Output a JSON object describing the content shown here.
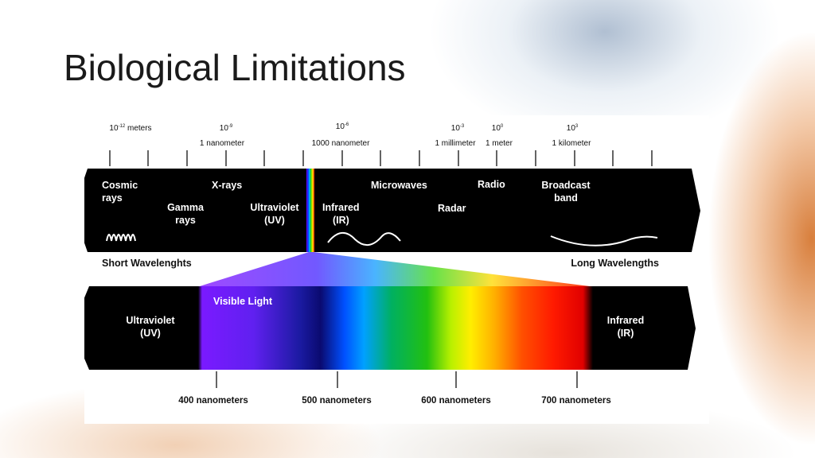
{
  "slide": {
    "title": "Biological Limitations"
  },
  "diagram": {
    "scale": [
      {
        "exponent_base": "10",
        "exponent": "-12",
        "unit": " meters",
        "sub": ""
      },
      {
        "exponent_base": "10",
        "exponent": "-9",
        "unit": "",
        "sub": "1 nanometer"
      },
      {
        "exponent_base": "10",
        "exponent": "-6",
        "unit": "",
        "sub": "1000 nanometer"
      },
      {
        "exponent_base": "10",
        "exponent": "-3",
        "unit": "",
        "sub": "1 millimeter"
      },
      {
        "exponent_base": "10",
        "exponent": "0",
        "unit": "",
        "sub": "1 meter"
      },
      {
        "exponent_base": "10",
        "exponent": "3",
        "unit": "",
        "sub": "1 kilometer"
      }
    ],
    "em_bands": {
      "cosmic": [
        "Cosmic",
        "rays"
      ],
      "xrays": "X-rays",
      "gamma": [
        "Gamma",
        "rays"
      ],
      "ultraviolet": [
        "Ultraviolet",
        "(UV)"
      ],
      "infrared": [
        "Infrared",
        "(IR)"
      ],
      "microwaves": "Microwaves",
      "radio": "Radio",
      "radar": "Radar",
      "broadcast": [
        "Broadcast",
        "band"
      ]
    },
    "short_label": "Short Wavelenghts",
    "long_label": "Long Wavelengths",
    "visible": {
      "uv": [
        "Ultraviolet",
        "(UV)"
      ],
      "title": "Visible Light",
      "ir": [
        "Infrared",
        "(IR)"
      ],
      "ticks": [
        "400 nanometers",
        "500 nanometers",
        "600 nanometers",
        "700 nanometers"
      ]
    },
    "colors": {
      "band": "#000000",
      "violet": "#8a2be2",
      "blue": "#1a1aa0",
      "green": "#22c010",
      "yellow": "#ffee00",
      "red": "#ff1a00"
    }
  }
}
